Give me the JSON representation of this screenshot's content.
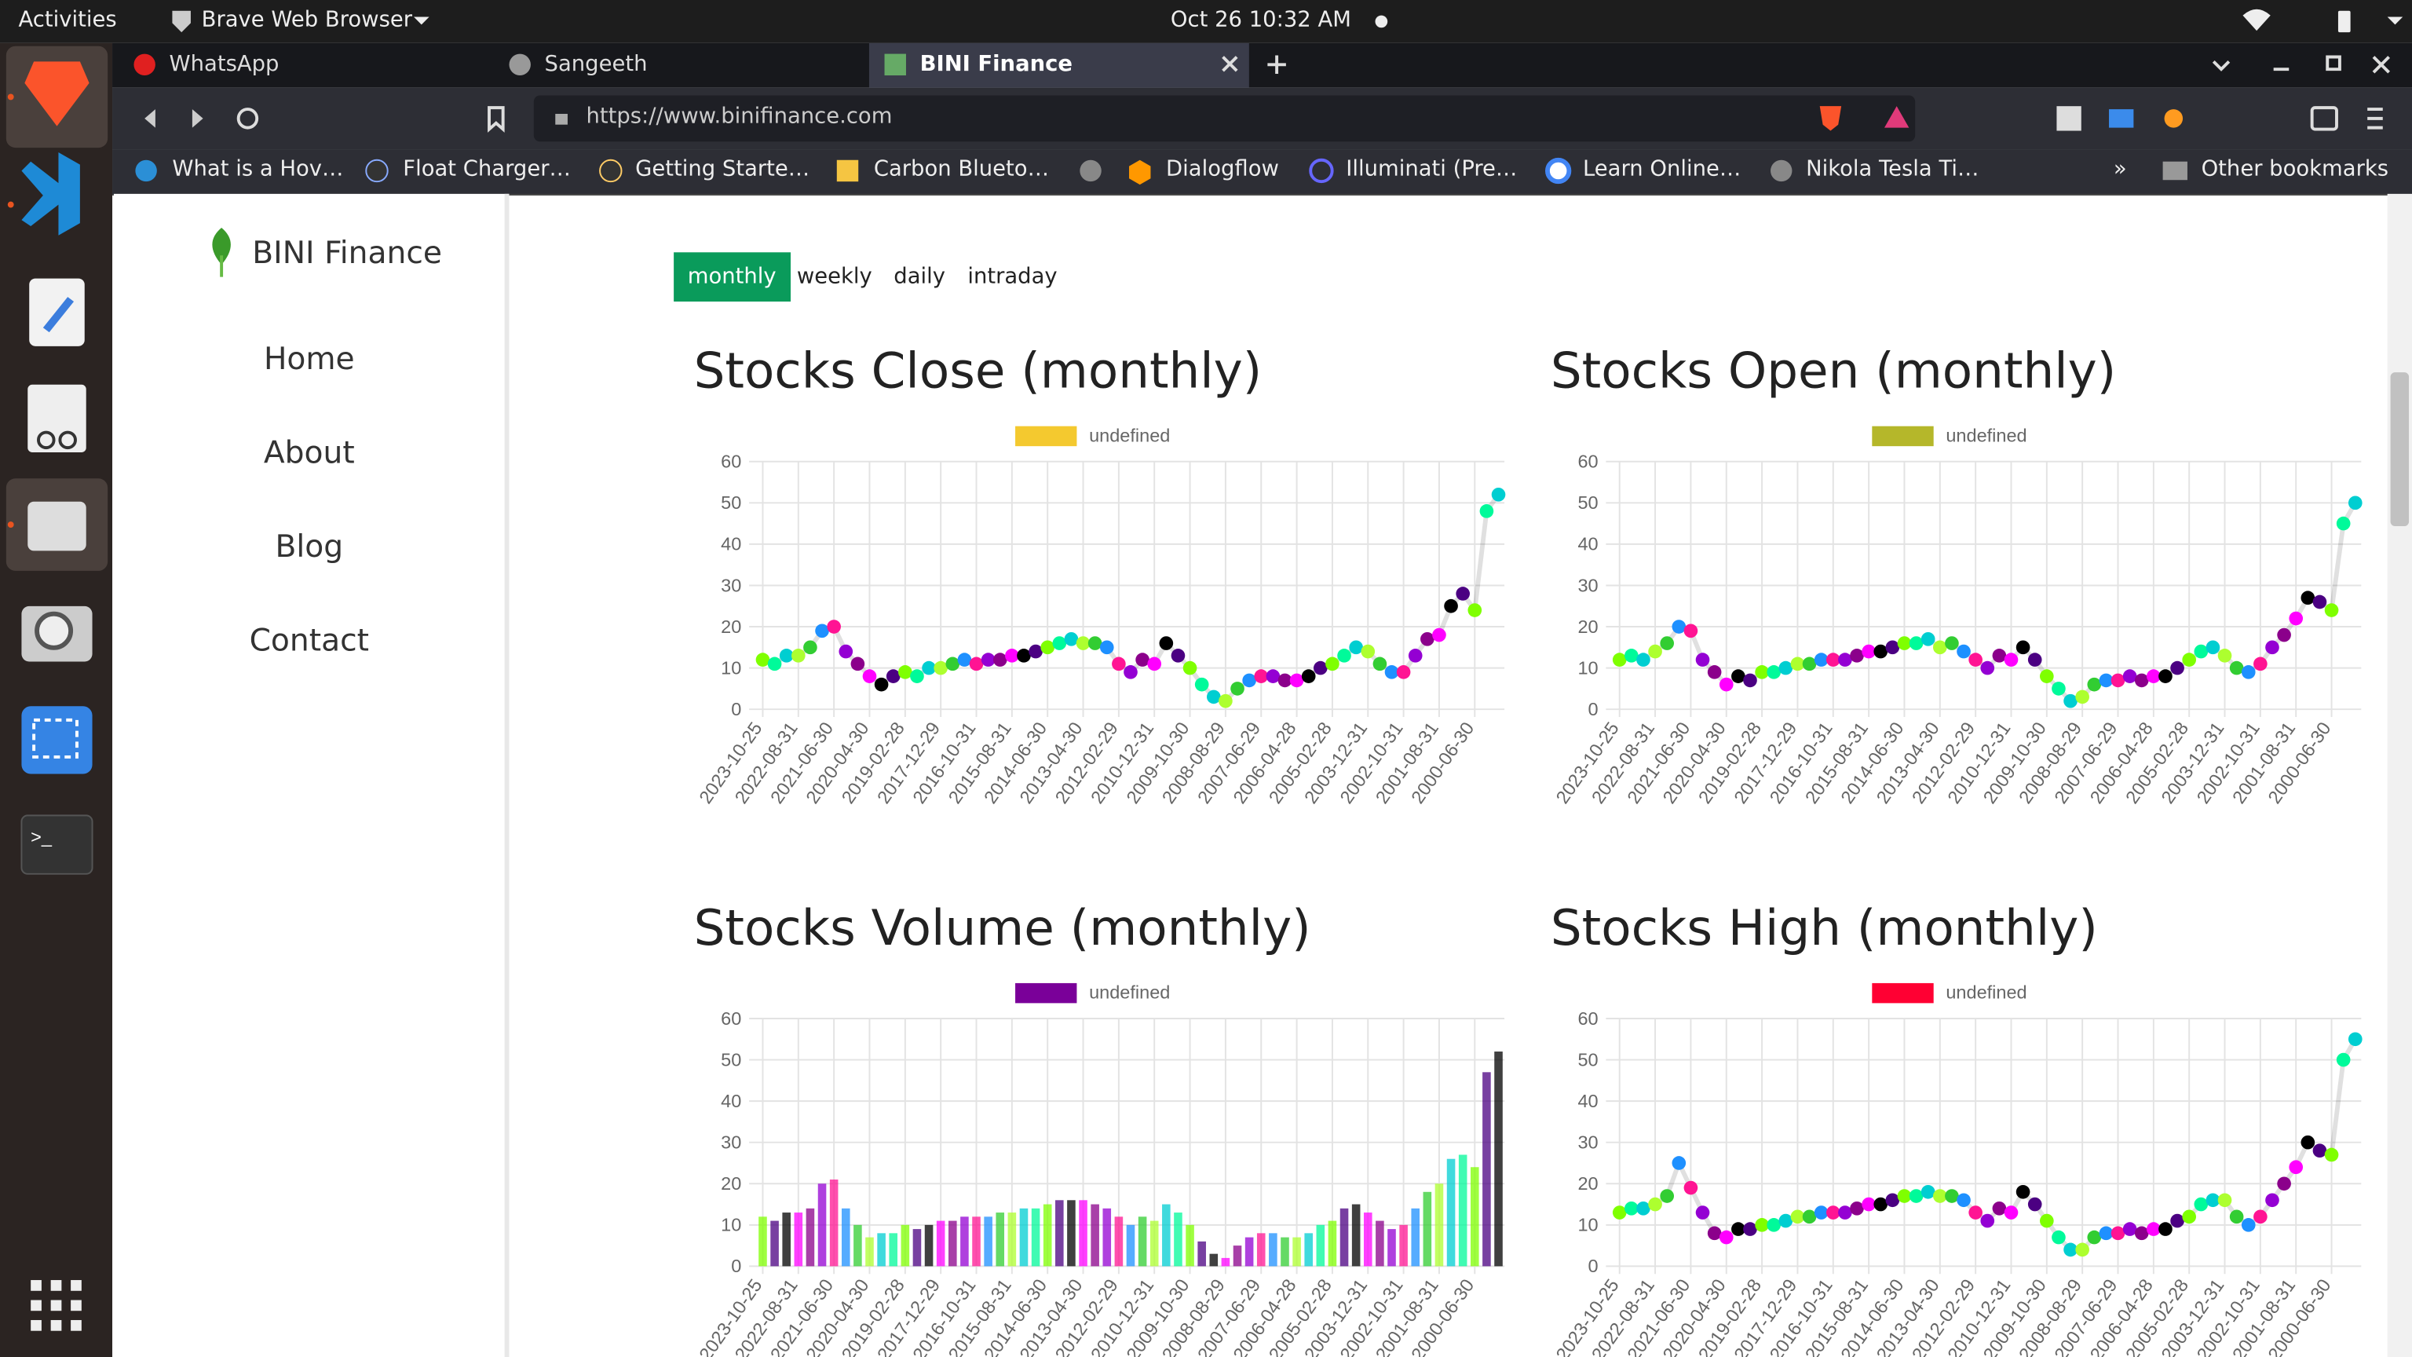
{
  "topbar": {
    "activities": "Activities",
    "app": "Brave Web Browser",
    "clock": "Oct 26  10:32 AM"
  },
  "browser": {
    "tabs": [
      "WhatsApp",
      "Sangeeth",
      "BINI Finance"
    ],
    "url": "https://www.binifinance.com",
    "bookmarks": [
      "What is a Hov…",
      "Float Charger…",
      "Getting Starte…",
      "Carbon Blueto…",
      "Dialogflow",
      "Illuminati (Pre…",
      "Learn Online…",
      "Nikola Tesla Ti…"
    ],
    "more": "»",
    "other": "Other bookmarks"
  },
  "sidebar": {
    "brand": "BINI Finance",
    "nav": [
      "Home",
      "About",
      "Blog",
      "Contact"
    ]
  },
  "filters": [
    "monthly",
    "weekly",
    "daily",
    "intraday"
  ],
  "palette": [
    "#7fff00",
    "#9400d3",
    "#00ced1",
    "#ff00ff",
    "#32cd32",
    "#4b0082",
    "#ff1493",
    "#00fa9a",
    "#8b008b",
    "#adff2f",
    "#000000",
    "#1e90ff"
  ],
  "chart_data": [
    {
      "type": "line",
      "title": "Stocks Close (monthly)",
      "legend": "undefined",
      "color": "#f4c92f",
      "ylim": [
        0,
        60
      ],
      "yticks": [
        0,
        10,
        20,
        30,
        40,
        50,
        60
      ],
      "grid": true,
      "categories": [
        "2023-10-25",
        null,
        null,
        "2022-08-31",
        null,
        null,
        "2021-06-30",
        null,
        null,
        "2020-04-30",
        null,
        null,
        "2019-02-28",
        null,
        null,
        "2017-12-29",
        null,
        null,
        "2016-10-31",
        null,
        null,
        "2015-08-31",
        null,
        null,
        "2014-06-30",
        null,
        null,
        "2013-04-30",
        null,
        null,
        "2012-02-29",
        null,
        null,
        "2010-12-31",
        null,
        null,
        "2009-10-30",
        null,
        null,
        "2008-08-29",
        null,
        null,
        "2007-06-29",
        null,
        null,
        "2006-04-28",
        null,
        null,
        "2005-02-28",
        null,
        null,
        "2003-12-31",
        null,
        null,
        "2002-10-31",
        null,
        null,
        "2001-08-31",
        null,
        null,
        "2000-06-30",
        null,
        null
      ],
      "values": [
        12,
        11,
        13,
        13,
        15,
        19,
        20,
        14,
        11,
        8,
        6,
        8,
        9,
        8,
        10,
        10,
        11,
        12,
        11,
        12,
        12,
        13,
        13,
        14,
        15,
        16,
        17,
        16,
        16,
        15,
        11,
        9,
        12,
        11,
        16,
        13,
        10,
        6,
        3,
        2,
        5,
        7,
        8,
        8,
        7,
        7,
        8,
        10,
        11,
        13,
        15,
        14,
        11,
        9,
        9,
        13,
        17,
        18,
        25,
        28,
        24,
        48,
        52
      ]
    },
    {
      "type": "line",
      "title": "Stocks Open (monthly)",
      "legend": "undefined",
      "color": "#b5b72a",
      "ylim": [
        0,
        60
      ],
      "yticks": [
        0,
        10,
        20,
        30,
        40,
        50,
        60
      ],
      "grid": true,
      "categories": [
        "2023-10-25",
        null,
        null,
        "2022-08-31",
        null,
        null,
        "2021-06-30",
        null,
        null,
        "2020-04-30",
        null,
        null,
        "2019-02-28",
        null,
        null,
        "2017-12-29",
        null,
        null,
        "2016-10-31",
        null,
        null,
        "2015-08-31",
        null,
        null,
        "2014-06-30",
        null,
        null,
        "2013-04-30",
        null,
        null,
        "2012-02-29",
        null,
        null,
        "2010-12-31",
        null,
        null,
        "2009-10-30",
        null,
        null,
        "2008-08-29",
        null,
        null,
        "2007-06-29",
        null,
        null,
        "2006-04-28",
        null,
        null,
        "2005-02-28",
        null,
        null,
        "2003-12-31",
        null,
        null,
        "2002-10-31",
        null,
        null,
        "2001-08-31",
        null,
        null,
        "2000-06-30",
        null,
        null
      ],
      "values": [
        12,
        13,
        12,
        14,
        16,
        20,
        19,
        12,
        9,
        6,
        8,
        7,
        9,
        9,
        10,
        11,
        11,
        12,
        12,
        12,
        13,
        14,
        14,
        15,
        16,
        16,
        17,
        15,
        16,
        14,
        12,
        10,
        13,
        12,
        15,
        12,
        8,
        5,
        2,
        3,
        6,
        7,
        7,
        8,
        7,
        8,
        8,
        10,
        12,
        14,
        15,
        13,
        10,
        9,
        11,
        15,
        18,
        22,
        27,
        26,
        24,
        45,
        50
      ]
    },
    {
      "type": "bar",
      "title": "Stocks Volume (monthly)",
      "legend": "undefined",
      "color": "#7a0099",
      "ylim": [
        0,
        60
      ],
      "yticks": [
        0,
        10,
        20,
        30,
        40,
        50,
        60
      ],
      "grid": true,
      "categories": [
        "2023-10-25",
        null,
        null,
        "2022-08-31",
        null,
        null,
        "2021-06-30",
        null,
        null,
        "2020-04-30",
        null,
        null,
        "2019-02-28",
        null,
        null,
        "2017-12-29",
        null,
        null,
        "2016-10-31",
        null,
        null,
        "2015-08-31",
        null,
        null,
        "2014-06-30",
        null,
        null,
        "2013-04-30",
        null,
        null,
        "2012-02-29",
        null,
        null,
        "2010-12-31",
        null,
        null,
        "2009-10-30",
        null,
        null,
        "2008-08-29",
        null,
        null,
        "2007-06-29",
        null,
        null,
        "2006-04-28",
        null,
        null,
        "2005-02-28",
        null,
        null,
        "2003-12-31",
        null,
        null,
        "2002-10-31",
        null,
        null,
        "2001-08-31",
        null,
        null,
        "2000-06-30",
        null,
        null
      ],
      "values": [
        12,
        11,
        13,
        13,
        14,
        20,
        21,
        14,
        10,
        7,
        8,
        8,
        10,
        9,
        10,
        11,
        11,
        12,
        12,
        12,
        13,
        13,
        14,
        14,
        15,
        16,
        16,
        16,
        15,
        14,
        12,
        10,
        12,
        11,
        15,
        13,
        10,
        6,
        3,
        2,
        5,
        7,
        8,
        8,
        7,
        7,
        8,
        10,
        11,
        14,
        15,
        13,
        11,
        9,
        10,
        14,
        18,
        20,
        26,
        27,
        24,
        47,
        52
      ]
    },
    {
      "type": "line",
      "title": "Stocks High (monthly)",
      "legend": "undefined",
      "color": "#ff0033",
      "ylim": [
        0,
        60
      ],
      "yticks": [
        0,
        10,
        20,
        30,
        40,
        50,
        60
      ],
      "grid": true,
      "categories": [
        "2023-10-25",
        null,
        null,
        "2022-08-31",
        null,
        null,
        "2021-06-30",
        null,
        null,
        "2020-04-30",
        null,
        null,
        "2019-02-28",
        null,
        null,
        "2017-12-29",
        null,
        null,
        "2016-10-31",
        null,
        null,
        "2015-08-31",
        null,
        null,
        "2014-06-30",
        null,
        null,
        "2013-04-30",
        null,
        null,
        "2012-02-29",
        null,
        null,
        "2010-12-31",
        null,
        null,
        "2009-10-30",
        null,
        null,
        "2008-08-29",
        null,
        null,
        "2007-06-29",
        null,
        null,
        "2006-04-28",
        null,
        null,
        "2005-02-28",
        null,
        null,
        "2003-12-31",
        null,
        null,
        "2002-10-31",
        null,
        null,
        "2001-08-31",
        null,
        null,
        "2000-06-30",
        null,
        null
      ],
      "values": [
        13,
        14,
        14,
        15,
        17,
        25,
        19,
        13,
        8,
        7,
        9,
        9,
        10,
        10,
        11,
        12,
        12,
        13,
        13,
        13,
        14,
        15,
        15,
        16,
        17,
        17,
        18,
        17,
        17,
        16,
        13,
        11,
        14,
        13,
        18,
        15,
        11,
        7,
        4,
        4,
        7,
        8,
        8,
        9,
        8,
        9,
        9,
        11,
        12,
        15,
        16,
        16,
        12,
        10,
        12,
        16,
        20,
        24,
        30,
        28,
        27,
        50,
        55
      ]
    }
  ]
}
